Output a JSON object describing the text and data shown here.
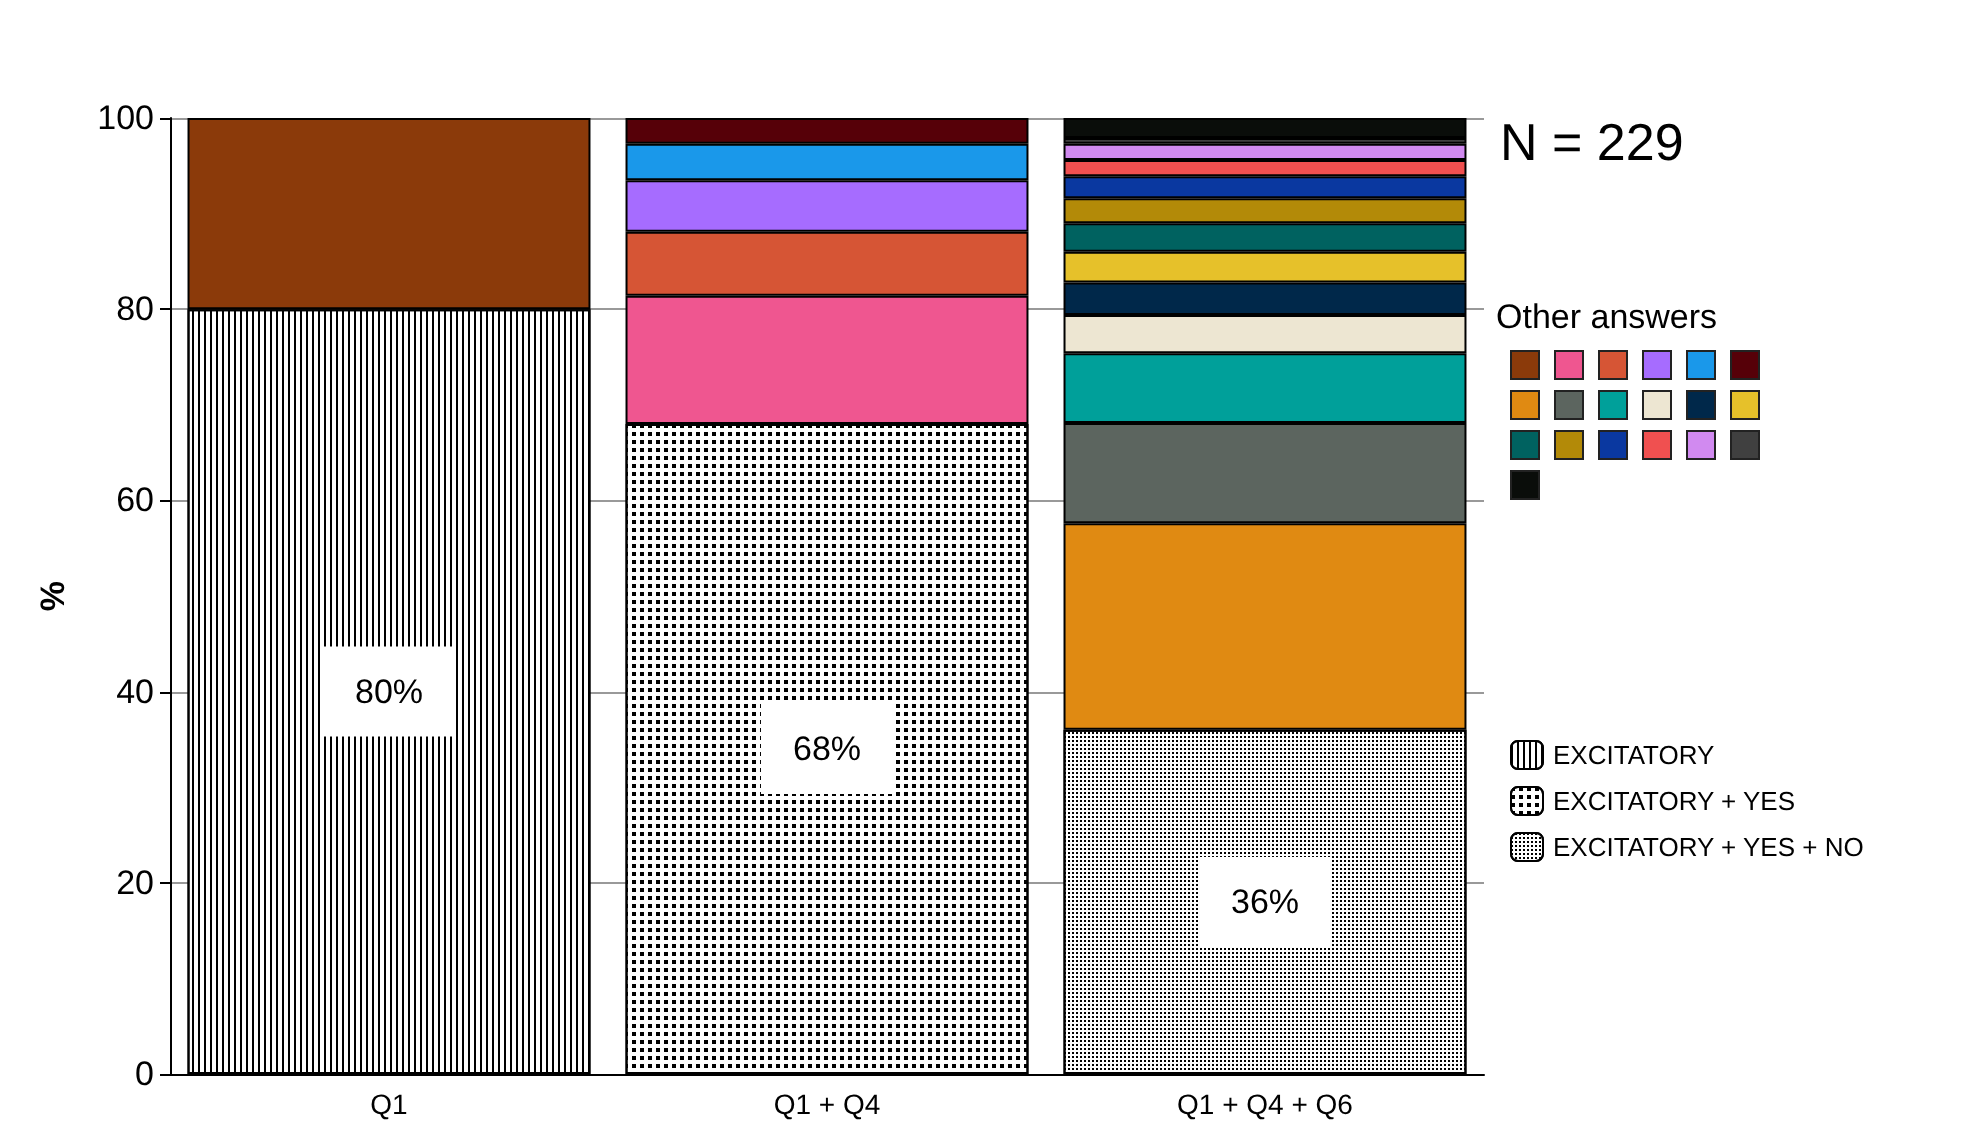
{
  "chart_data": {
    "type": "bar",
    "stacked": true,
    "categories": [
      "Q1",
      "Q1 + Q4",
      "Q1 + Q4 + Q6"
    ],
    "ylabel": "%",
    "ylim": [
      0,
      100
    ],
    "yticks": [
      0,
      20,
      40,
      60,
      80,
      100
    ],
    "grid": "y",
    "legend": "right",
    "annotations": [
      "N = 229",
      "Other answers"
    ],
    "series": [
      {
        "name": "EXCITATORY",
        "color": "#000000",
        "values": [
          80,
          null,
          null
        ],
        "value_labels": [
          "80%",
          null,
          null
        ]
      },
      {
        "name": "EXCITATORY + YES",
        "color": "#000000",
        "values": [
          null,
          68,
          null
        ],
        "value_labels": [
          null,
          "68%",
          null
        ]
      },
      {
        "name": "EXCITATORY + YES + NO",
        "color": "#000000",
        "values": [
          null,
          null,
          36
        ],
        "value_labels": [
          null,
          null,
          "36%"
        ]
      },
      {
        "color": "#8b3a0a",
        "values": [
          20,
          null,
          null
        ]
      },
      {
        "color": "#ef5690",
        "values": [
          null,
          13.4,
          null
        ]
      },
      {
        "color": "#d65535",
        "values": [
          null,
          6.7,
          null
        ]
      },
      {
        "color": "#a66cff",
        "values": [
          null,
          5.4,
          null
        ]
      },
      {
        "color": "#1a98ea",
        "values": [
          null,
          3.8,
          null
        ]
      },
      {
        "color": "#560008",
        "values": [
          null,
          2.7,
          null
        ]
      },
      {
        "color": "#e08a12",
        "values": [
          null,
          null,
          21.6
        ]
      },
      {
        "color": "#5c655f",
        "values": [
          null,
          null,
          10.5
        ]
      },
      {
        "color": "#00a09a",
        "values": [
          null,
          null,
          7.3
        ]
      },
      {
        "color": "#ede6d2",
        "values": [
          null,
          null,
          4.0
        ]
      },
      {
        "color": "#00284a",
        "values": [
          null,
          null,
          3.4
        ]
      },
      {
        "color": "#e6c12a",
        "values": [
          null,
          null,
          3.2
        ]
      },
      {
        "color": "#006260",
        "values": [
          null,
          null,
          3.0
        ]
      },
      {
        "color": "#b38a08",
        "values": [
          null,
          null,
          2.6
        ]
      },
      {
        "color": "#0a38a0",
        "values": [
          null,
          null,
          2.3
        ]
      },
      {
        "color": "#f05050",
        "values": [
          null,
          null,
          1.7
        ]
      },
      {
        "color": "#d18af0",
        "values": [
          null,
          null,
          1.7
        ]
      },
      {
        "color": "#404040",
        "values": [
          null,
          null,
          0.6
        ]
      },
      {
        "color": "#0a0d0a",
        "values": [
          null,
          null,
          2.1
        ]
      }
    ]
  }
}
